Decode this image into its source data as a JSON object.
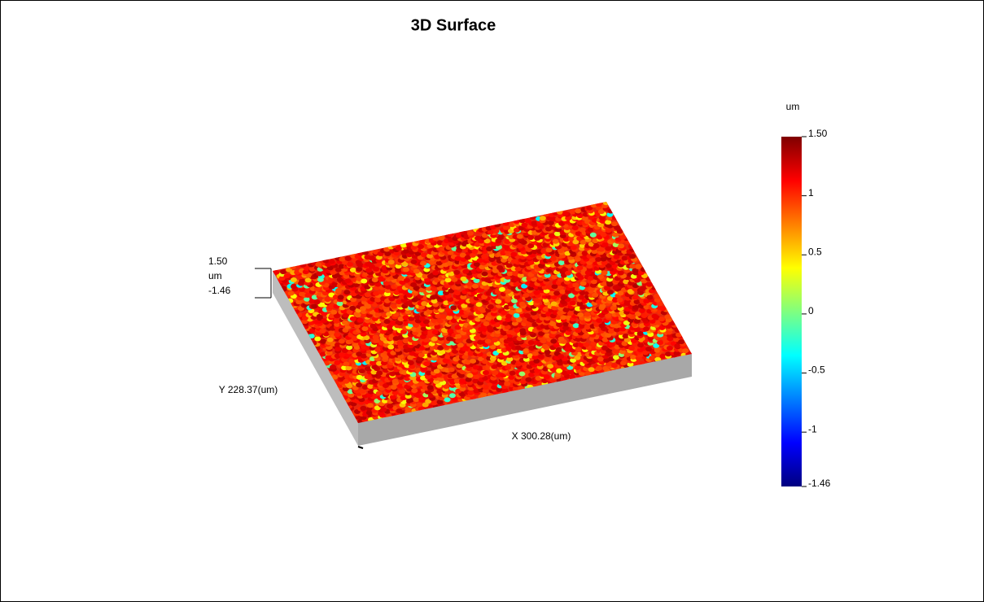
{
  "chart_data": {
    "type": "surface3d",
    "title": "3D Surface",
    "x_label": "X 300.28(um)",
    "y_label": "Y 228.37(um)",
    "z_label": "um",
    "zticks": [
      {
        "value": 1.5,
        "label": "1.50"
      },
      -1.46
    ],
    "colorbar": {
      "label": "um",
      "lim": [
        -1.46,
        1.5
      ],
      "ticks": [
        {
          "value": 1.5,
          "label": "1.50"
        },
        1,
        0.5,
        0,
        -0.5,
        -1,
        -1.46
      ]
    }
  }
}
